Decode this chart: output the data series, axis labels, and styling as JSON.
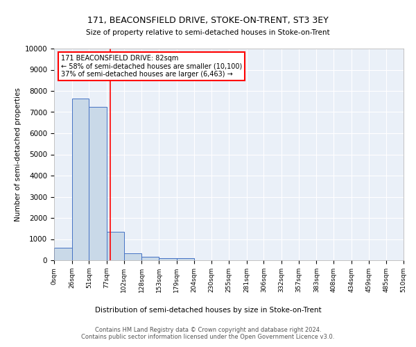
{
  "title": "171, BEACONSFIELD DRIVE, STOKE-ON-TRENT, ST3 3EY",
  "subtitle": "Size of property relative to semi-detached houses in Stoke-on-Trent",
  "xlabel": "Distribution of semi-detached houses by size in Stoke-on-Trent",
  "ylabel": "Number of semi-detached properties",
  "bin_labels": [
    "0sqm",
    "26sqm",
    "51sqm",
    "77sqm",
    "102sqm",
    "128sqm",
    "153sqm",
    "179sqm",
    "204sqm",
    "230sqm",
    "255sqm",
    "281sqm",
    "306sqm",
    "332sqm",
    "357sqm",
    "383sqm",
    "408sqm",
    "434sqm",
    "459sqm",
    "485sqm",
    "510sqm"
  ],
  "bar_heights": [
    580,
    7630,
    7250,
    1340,
    330,
    150,
    110,
    95,
    0,
    0,
    0,
    0,
    0,
    0,
    0,
    0,
    0,
    0,
    0,
    0
  ],
  "bar_color": "#c9d9e8",
  "bar_edge_color": "#4472c4",
  "vline_x": 82,
  "vline_color": "red",
  "annotation_title": "171 BEACONSFIELD DRIVE: 82sqm",
  "annotation_line1": "← 58% of semi-detached houses are smaller (10,100)",
  "annotation_line2": "37% of semi-detached houses are larger (6,463) →",
  "ylim": [
    0,
    10000
  ],
  "yticks": [
    0,
    1000,
    2000,
    3000,
    4000,
    5000,
    6000,
    7000,
    8000,
    9000,
    10000
  ],
  "background_color": "#eaf0f8",
  "footer": "Contains HM Land Registry data © Crown copyright and database right 2024.\nContains public sector information licensed under the Open Government Licence v3.0.",
  "bin_edges": [
    0,
    26,
    51,
    77,
    102,
    128,
    153,
    179,
    204,
    230,
    255,
    281,
    306,
    332,
    357,
    383,
    408,
    434,
    459,
    485,
    510
  ]
}
